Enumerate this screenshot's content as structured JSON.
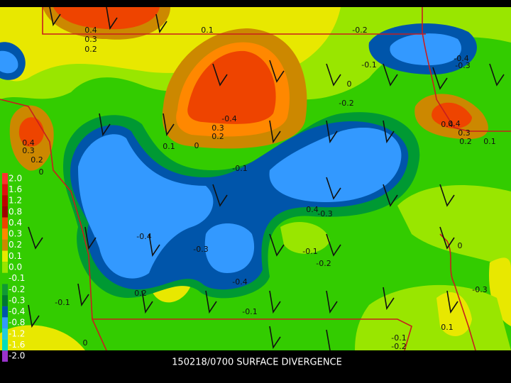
{
  "title": "150218/0700 SURFACE DIVERGENCE",
  "legend": [
    {
      "label": "2.0",
      "color": "#ff3030"
    },
    {
      "label": "1.6",
      "color": "#e01010"
    },
    {
      "label": "1.2",
      "color": "#c00000"
    },
    {
      "label": "0.8",
      "color": "#a00000"
    },
    {
      "label": "0.4",
      "color": "#ee4400"
    },
    {
      "label": "0.3",
      "color": "#ff8800"
    },
    {
      "label": "0.2",
      "color": "#cc8800"
    },
    {
      "label": "0.1",
      "color": "#e8e800"
    },
    {
      "label": "0.0",
      "color": "#99e600"
    },
    {
      "label": "-0.1",
      "color": "#33cc00"
    },
    {
      "label": "-0.2",
      "color": "#119933"
    },
    {
      "label": "-0.3",
      "color": "#007733"
    },
    {
      "label": "-0.4",
      "color": "#0055aa"
    },
    {
      "label": "-0.8",
      "color": "#3399ff"
    },
    {
      "label": "-1.2",
      "color": "#22ccdd"
    },
    {
      "label": "-1.6",
      "color": "#00ddbb"
    },
    {
      "label": "-2.0",
      "color": "#9933cc"
    }
  ],
  "contour_labels": [
    "0.4",
    "0.3",
    "0.2",
    "0.1",
    "-0.2",
    "-0.4",
    "-0.3",
    "-0.1",
    "0",
    "-0.2",
    "-0.4",
    "0.3",
    "0.2",
    "0.1",
    "0",
    "0.4",
    "0.3",
    "0.2",
    "0",
    "-0.1",
    "0.4",
    "-0.3",
    "-0.4",
    "-0.3",
    "-0.1",
    "-0.2",
    "-0.4",
    "0.2",
    "-0.1",
    "-0.1",
    "0.4",
    "0.3",
    "0.2",
    "0.1",
    "0",
    "-0.3",
    "0.4",
    "0.1",
    "0",
    "-0.1",
    "-0.2"
  ]
}
